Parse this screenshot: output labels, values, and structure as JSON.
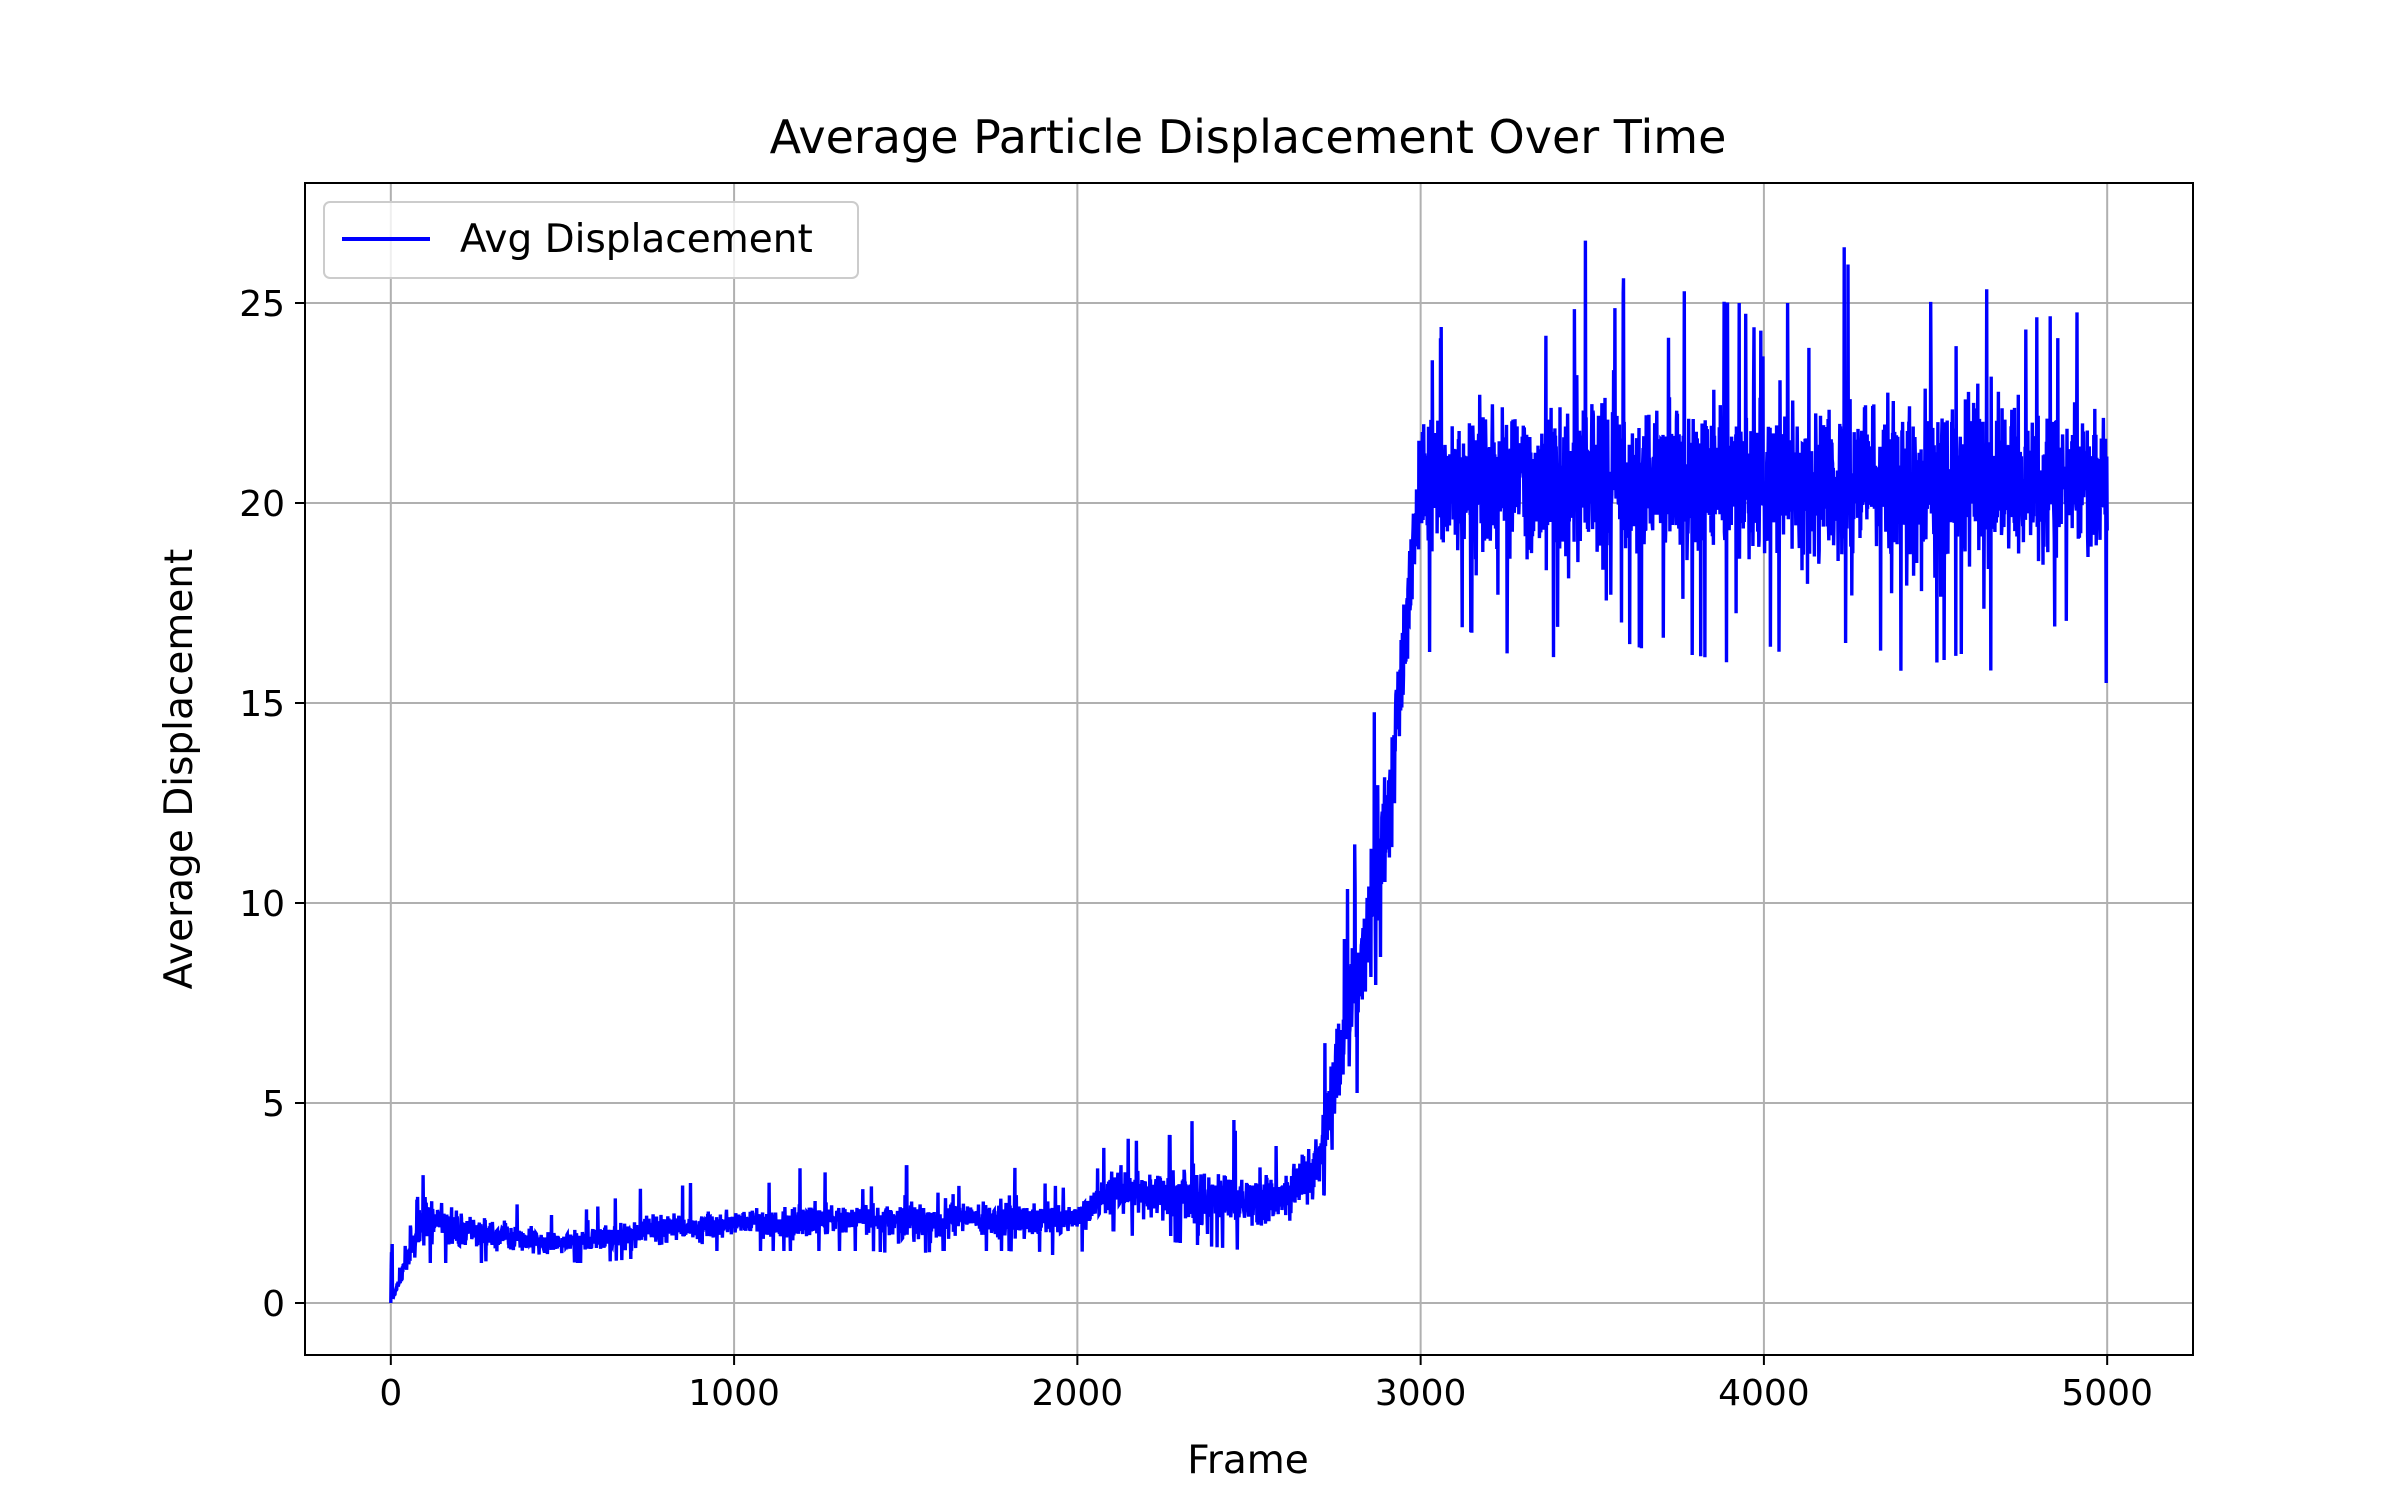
{
  "chart_data": {
    "type": "line",
    "title": "Average Particle Displacement Over Time",
    "xlabel": "Frame",
    "ylabel": "Average Displacement",
    "xlim": [
      -250,
      5250
    ],
    "ylim": [
      -1.3,
      28
    ],
    "xticks": [
      0,
      1000,
      2000,
      3000,
      4000,
      5000
    ],
    "yticks": [
      0,
      5,
      10,
      15,
      20,
      25
    ],
    "grid": true,
    "legend_position": "top-left",
    "series": [
      {
        "name": "Avg Displacement",
        "color": "#0000ff",
        "x_start": 0,
        "x_step": 100,
        "mean": [
          0.0,
          2.2,
          1.8,
          1.7,
          1.6,
          1.5,
          1.6,
          1.7,
          1.9,
          1.9,
          2.0,
          2.0,
          2.0,
          2.1,
          2.1,
          2.1,
          2.1,
          2.1,
          2.1,
          2.1,
          2.1,
          2.8,
          2.7,
          2.7,
          2.6,
          2.6,
          2.6,
          3.5,
          7.5,
          12.0,
          20.5,
          20.5,
          20.5,
          20.5,
          20.5,
          20.5,
          20.5,
          20.5,
          20.5,
          20.5,
          20.5,
          20.5,
          20.5,
          20.5,
          20.5,
          20.5,
          20.5,
          20.5,
          20.5,
          20.5,
          20.5
        ],
        "low": [
          0.0,
          1.0,
          1.0,
          1.0,
          1.0,
          1.0,
          1.0,
          1.1,
          1.2,
          1.3,
          1.3,
          1.3,
          1.3,
          1.3,
          1.3,
          1.2,
          1.3,
          1.3,
          1.3,
          1.2,
          1.2,
          1.8,
          1.6,
          1.5,
          1.4,
          1.3,
          1.3,
          2.3,
          4.5,
          9.5,
          16.0,
          17.0,
          16.5,
          16.0,
          16.0,
          15.3,
          16.5,
          16.2,
          16.2,
          16.0,
          16.5,
          16.0,
          16.5,
          16.5,
          15.8,
          16.0,
          16.3,
          15.5,
          16.0,
          15.5,
          15.5
        ],
        "high": [
          0.0,
          3.4,
          3.0,
          2.6,
          2.4,
          2.2,
          2.4,
          2.8,
          3.0,
          3.0,
          3.0,
          3.0,
          3.4,
          3.2,
          3.2,
          3.4,
          3.6,
          3.2,
          3.8,
          3.0,
          2.8,
          4.2,
          4.0,
          5.2,
          4.8,
          4.4,
          3.8,
          6.0,
          11.0,
          16.8,
          22.6,
          25.6,
          26.8,
          25.0,
          25.6,
          26.8,
          25.5,
          25.5,
          25.2,
          25.0,
          25.0,
          25.0,
          26.8,
          25.6,
          25.2,
          25.0,
          26.6,
          25.5,
          24.6,
          24.8,
          24.5
        ],
        "noise": 0.28,
        "spike": 0.35,
        "seed": 7
      }
    ]
  }
}
